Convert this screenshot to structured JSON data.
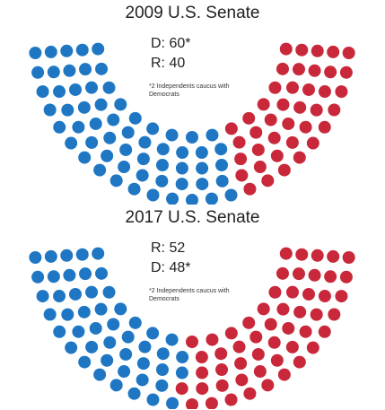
{
  "chart_data": [
    {
      "type": "parliament",
      "title": "2009 U.S. Senate",
      "direction": "ltr",
      "values": [
        60,
        40
      ],
      "value_labels": [
        "D: 60*",
        "R: 40"
      ],
      "colors": [
        "#1f77c4",
        "#c9283a"
      ],
      "note": "*2 Independents caucus with Democrats"
    },
    {
      "type": "parliament",
      "title": "2017 U.S. Senate",
      "direction": "rtl",
      "values": [
        52,
        48
      ],
      "value_labels": [
        "R: 52",
        "D: 48*"
      ],
      "colors": [
        "#c9283a",
        "#1f77c4"
      ],
      "note": "*2 Independents caucus with Democrats"
    }
  ]
}
